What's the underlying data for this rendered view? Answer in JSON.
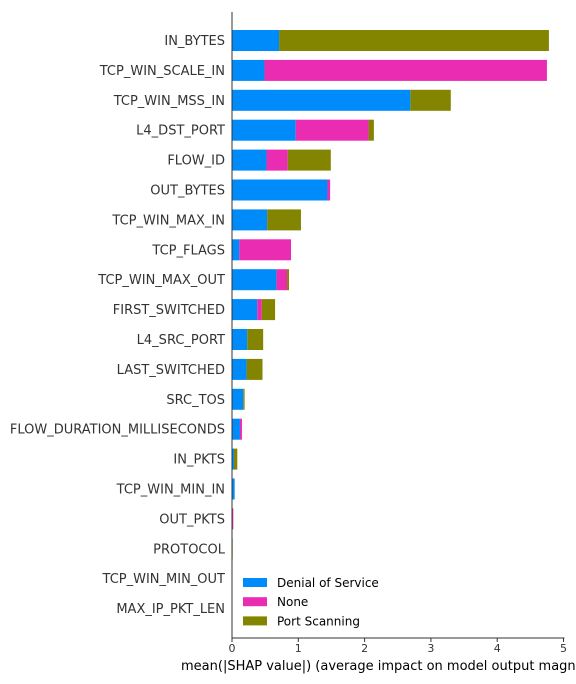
{
  "chart_data": {
    "type": "bar",
    "stacked": true,
    "orientation": "horizontal",
    "categories": [
      "IN_BYTES",
      "TCP_WIN_SCALE_IN",
      "TCP_WIN_MSS_IN",
      "L4_DST_PORT",
      "FLOW_ID",
      "OUT_BYTES",
      "TCP_WIN_MAX_IN",
      "TCP_FLAGS",
      "TCP_WIN_MAX_OUT",
      "FIRST_SWITCHED",
      "L4_SRC_PORT",
      "LAST_SWITCHED",
      "SRC_TOS",
      "FLOW_DURATION_MILLISECONDS",
      "IN_PKTS",
      "TCP_WIN_MIN_IN",
      "OUT_PKTS",
      "PROTOCOL",
      "TCP_WIN_MIN_OUT",
      "MAX_IP_PKT_LEN"
    ],
    "series": [
      {
        "name": "Denial of Service",
        "color": "#008bfb",
        "values": [
          0.71,
          0.49,
          2.69,
          0.96,
          0.52,
          1.44,
          0.53,
          0.11,
          0.67,
          0.38,
          0.23,
          0.22,
          0.17,
          0.12,
          0.03,
          0.04,
          0.0,
          0.0,
          0.0,
          0.0
        ]
      },
      {
        "name": "None",
        "color": "#ea2cb2",
        "values": [
          0.0,
          4.26,
          0.0,
          1.1,
          0.32,
          0.04,
          0.0,
          0.78,
          0.16,
          0.07,
          0.0,
          0.0,
          0.0,
          0.03,
          0.0,
          0.0,
          0.02,
          0.0,
          0.0,
          0.0
        ]
      },
      {
        "name": "Port Scanning",
        "color": "#838500",
        "values": [
          4.07,
          0.0,
          0.61,
          0.08,
          0.65,
          0.0,
          0.51,
          0.0,
          0.03,
          0.2,
          0.24,
          0.24,
          0.02,
          0.0,
          0.05,
          0.0,
          0.0,
          0.01,
          0.0,
          0.0
        ]
      }
    ],
    "xlabel": "mean(|SHAP value|) (average impact on model output magnitude)",
    "xlim": [
      0,
      5
    ],
    "xticks": [
      "0",
      "1",
      "2",
      "3",
      "4",
      "5"
    ],
    "grid": false,
    "legend_position": "lower-right"
  }
}
